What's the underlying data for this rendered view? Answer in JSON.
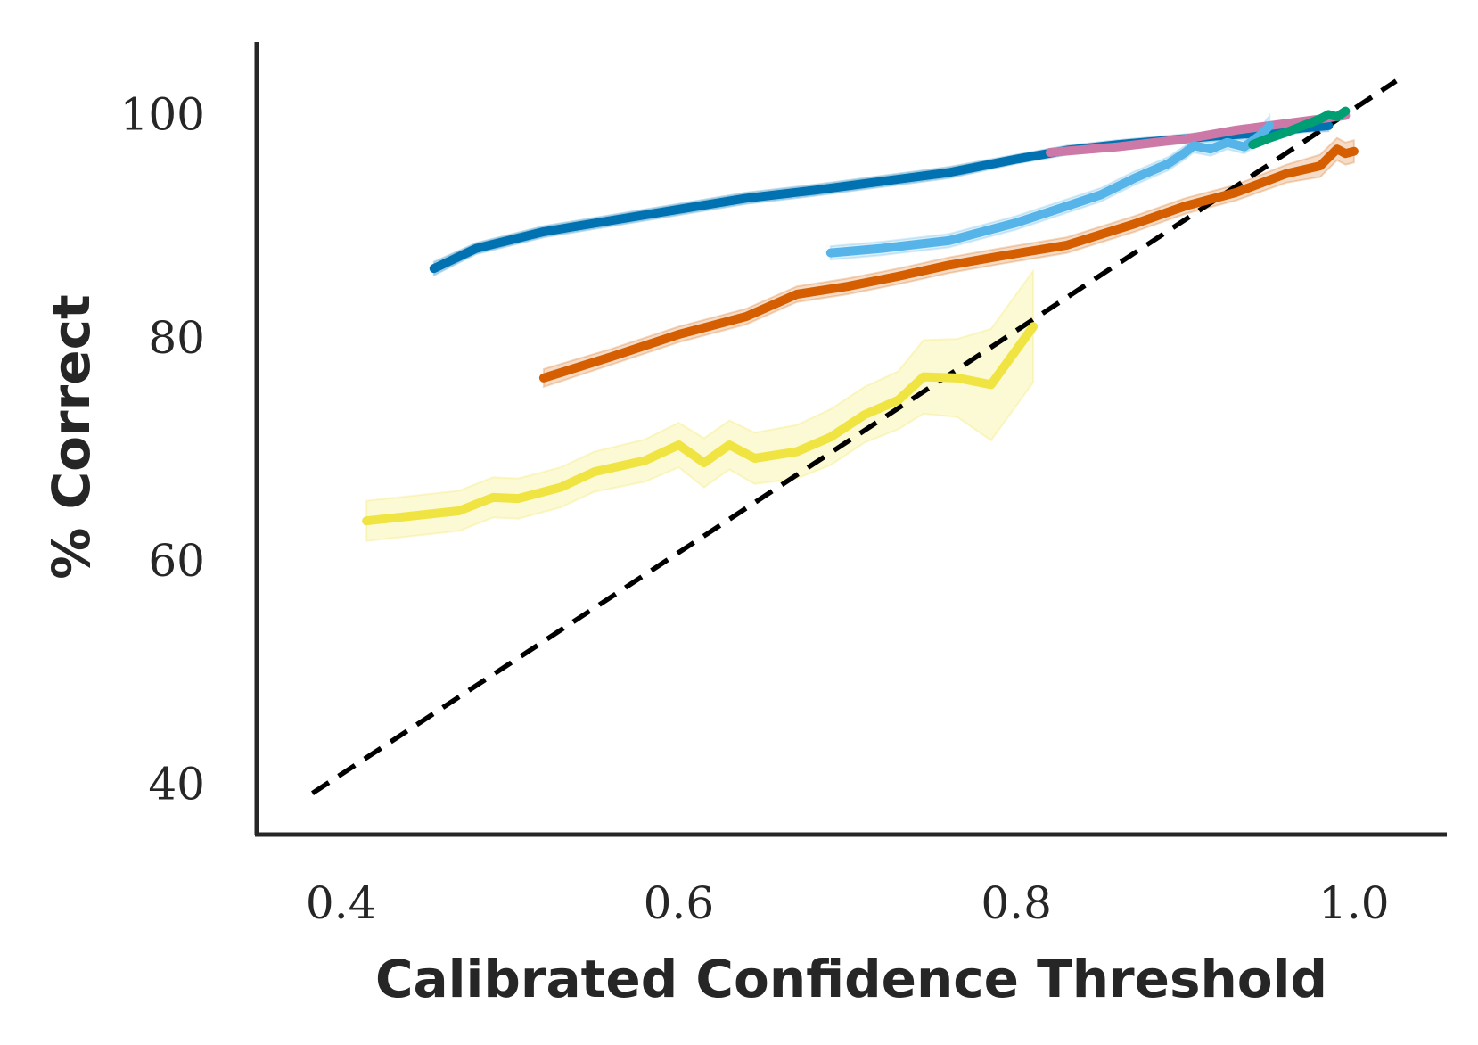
{
  "chart_data": {
    "type": "line",
    "title": "",
    "xlabel": "Calibrated Confidence Threshold",
    "ylabel": "% Correct",
    "xlim": [
      0.35,
      1.055
    ],
    "ylim": [
      35.5,
      106.5
    ],
    "xticks": [
      0.4,
      0.6,
      0.8,
      1.0
    ],
    "xtick_labels": [
      "0.4",
      "0.6",
      "0.8",
      "1.0"
    ],
    "yticks": [
      40,
      60,
      80,
      100
    ],
    "ytick_labels": [
      "40",
      "60",
      "80",
      "100"
    ],
    "grid": false,
    "legend": null,
    "reference_line": {
      "style": "dashed",
      "color": "#000000",
      "x": [
        0.383,
        1.025
      ],
      "y": [
        39.2,
        103.0
      ]
    },
    "series": [
      {
        "color": "#0072B2",
        "x": [
          0.455,
          0.48,
          0.52,
          0.56,
          0.6,
          0.64,
          0.68,
          0.72,
          0.76,
          0.8,
          0.83,
          0.86,
          0.89,
          0.92,
          0.95,
          0.97,
          0.985
        ],
        "y": [
          86.2,
          88.0,
          89.5,
          90.5,
          91.5,
          92.5,
          93.2,
          94.0,
          94.8,
          96.0,
          96.8,
          97.3,
          97.7,
          98.1,
          98.4,
          98.8,
          99.0
        ],
        "lower": [
          85.6,
          87.5,
          89.0,
          90.0,
          91.0,
          92.0,
          92.7,
          93.5,
          94.3,
          95.6,
          96.4,
          96.9,
          97.3,
          97.7,
          98.0,
          98.4,
          98.5
        ],
        "upper": [
          86.8,
          88.5,
          90.0,
          91.0,
          92.0,
          93.0,
          93.7,
          94.5,
          95.3,
          96.4,
          97.2,
          97.7,
          98.1,
          98.5,
          98.8,
          99.2,
          99.5
        ]
      },
      {
        "color": "#CC79A7",
        "x": [
          0.82,
          0.86,
          0.9,
          0.93,
          0.96,
          0.98,
          0.995
        ],
        "y": [
          96.6,
          97.1,
          97.8,
          98.6,
          99.2,
          99.6,
          99.9
        ],
        "lower": [
          96.3,
          96.8,
          97.5,
          98.3,
          98.9,
          99.3,
          99.6
        ],
        "upper": [
          96.9,
          97.4,
          98.1,
          98.9,
          99.5,
          99.9,
          100.2
        ]
      },
      {
        "color": "#56B4E9",
        "x": [
          0.69,
          0.72,
          0.76,
          0.8,
          0.83,
          0.85,
          0.87,
          0.89,
          0.9,
          0.905,
          0.915,
          0.925,
          0.935,
          0.945,
          0.95
        ],
        "y": [
          87.6,
          88.0,
          88.7,
          90.3,
          91.8,
          92.8,
          94.3,
          95.6,
          96.6,
          97.2,
          96.9,
          97.5,
          97.1,
          98.2,
          99.0
        ],
        "lower": [
          87.0,
          87.4,
          88.1,
          89.7,
          91.2,
          92.2,
          93.7,
          95.0,
          96.0,
          96.6,
          96.3,
          96.9,
          96.5,
          97.5,
          98.0
        ],
        "upper": [
          88.2,
          88.6,
          89.3,
          90.9,
          92.4,
          93.4,
          94.9,
          96.2,
          97.2,
          97.8,
          97.5,
          98.1,
          97.7,
          98.9,
          99.9
        ]
      },
      {
        "color": "#009E73",
        "x": [
          0.94,
          0.95,
          0.96,
          0.97,
          0.98,
          0.985,
          0.99,
          0.995
        ],
        "y": [
          97.3,
          97.9,
          98.4,
          99.0,
          99.6,
          100.0,
          99.8,
          100.3
        ],
        "lower": [
          97.0,
          97.6,
          98.1,
          98.7,
          99.3,
          99.7,
          99.5,
          100.0
        ],
        "upper": [
          97.6,
          98.2,
          98.7,
          99.3,
          99.9,
          100.3,
          100.1,
          100.6
        ]
      },
      {
        "color": "#D55E00",
        "x": [
          0.52,
          0.56,
          0.6,
          0.64,
          0.67,
          0.7,
          0.73,
          0.76,
          0.79,
          0.83,
          0.87,
          0.9,
          0.93,
          0.96,
          0.98,
          0.99,
          0.995,
          1.0
        ],
        "y": [
          76.4,
          78.3,
          80.3,
          81.9,
          83.9,
          84.6,
          85.5,
          86.5,
          87.3,
          88.3,
          90.2,
          91.8,
          93.0,
          94.7,
          95.4,
          96.9,
          96.5,
          96.7
        ],
        "lower": [
          75.6,
          77.6,
          79.6,
          81.2,
          83.2,
          83.9,
          84.8,
          85.8,
          86.6,
          87.6,
          89.5,
          91.1,
          92.3,
          93.9,
          94.4,
          95.9,
          95.5,
          95.7
        ],
        "upper": [
          77.2,
          79.0,
          81.0,
          82.6,
          84.6,
          85.3,
          86.2,
          87.2,
          88.0,
          89.0,
          90.9,
          92.5,
          93.7,
          95.5,
          96.4,
          97.9,
          97.5,
          97.7
        ]
      },
      {
        "color": "#F0E442",
        "x": [
          0.415,
          0.47,
          0.49,
          0.505,
          0.53,
          0.55,
          0.58,
          0.6,
          0.615,
          0.63,
          0.645,
          0.67,
          0.69,
          0.71,
          0.73,
          0.745,
          0.765,
          0.785,
          0.81
        ],
        "y": [
          63.6,
          64.5,
          65.7,
          65.6,
          66.6,
          68.0,
          69.0,
          70.4,
          68.8,
          70.4,
          69.2,
          69.8,
          71.1,
          73.1,
          74.4,
          76.5,
          76.4,
          75.8,
          81.0
        ],
        "lower": [
          61.8,
          62.7,
          63.9,
          63.8,
          64.8,
          66.2,
          67.1,
          68.4,
          66.6,
          68.2,
          66.9,
          67.4,
          68.6,
          70.6,
          71.8,
          73.2,
          72.9,
          70.8,
          76.0
        ],
        "upper": [
          65.4,
          66.3,
          67.5,
          67.4,
          68.4,
          69.8,
          70.9,
          72.4,
          71.0,
          72.6,
          71.5,
          72.2,
          73.6,
          75.6,
          77.0,
          79.8,
          79.9,
          80.8,
          86.0
        ]
      }
    ]
  }
}
